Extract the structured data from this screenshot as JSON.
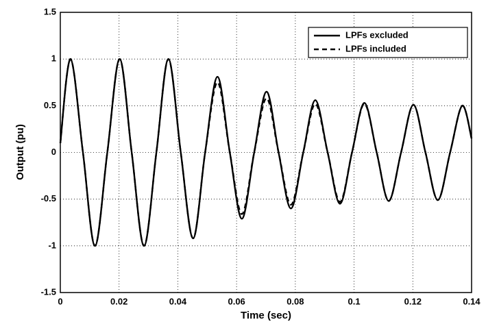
{
  "chart_data": {
    "type": "line",
    "xlabel": "Time (sec)",
    "ylabel": "Output (pu)",
    "x": [
      0,
      0.0035,
      0.0077,
      0.0118,
      0.016,
      0.0202,
      0.0243,
      0.0285,
      0.0327,
      0.0368,
      0.041,
      0.0452,
      0.0493,
      0.0535,
      0.0577,
      0.0618,
      0.066,
      0.0702,
      0.0743,
      0.0785,
      0.0827,
      0.0868,
      0.091,
      0.0952,
      0.0993,
      0.1035,
      0.1077,
      0.1118,
      0.116,
      0.1202,
      0.1243,
      0.1285,
      0.1327,
      0.1368,
      0.14
    ],
    "series": [
      {
        "name": "LPFs excluded",
        "color": "#000000",
        "dash": "solid",
        "values": [
          0.1,
          1.0,
          0,
          -1.0,
          0,
          1.0,
          0,
          -1.0,
          0,
          1.0,
          0,
          -0.92,
          0,
          0.81,
          0,
          -0.71,
          0,
          0.65,
          0,
          -0.6,
          0,
          0.56,
          0,
          -0.55,
          0,
          0.53,
          0,
          -0.52,
          0,
          0.51,
          0,
          -0.51,
          0,
          0.5,
          0.15
        ]
      },
      {
        "name": "LPFs included",
        "color": "#000000",
        "dash": "dashed",
        "values": [
          0.1,
          1.0,
          0,
          -1.0,
          0,
          1.0,
          0,
          -1.0,
          0,
          1.0,
          0,
          -0.92,
          0,
          0.75,
          0,
          -0.66,
          0,
          0.58,
          0,
          -0.56,
          0,
          0.52,
          0,
          -0.53,
          0,
          0.52,
          0,
          -0.52,
          0,
          0.51,
          0,
          -0.51,
          0,
          0.5,
          0.15
        ]
      }
    ],
    "xlim": [
      0,
      0.14
    ],
    "xticks": [
      0,
      0.02,
      0.04,
      0.06,
      0.08,
      0.1,
      0.12,
      0.14
    ],
    "ylim": [
      -1.5,
      1.5
    ],
    "yticks": [
      -1.5,
      -1,
      -0.5,
      0,
      0.5,
      1,
      1.5
    ],
    "grid": true,
    "legend": "upper right"
  }
}
